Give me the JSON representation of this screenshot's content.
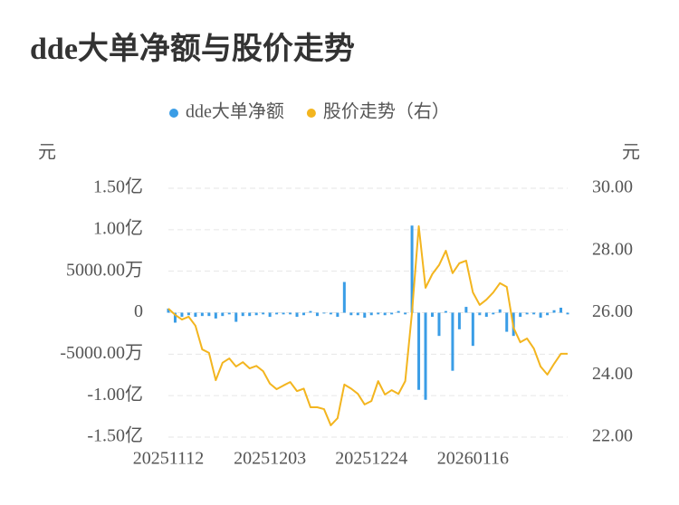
{
  "chart_data": {
    "type": "bar-line",
    "title": "dde大单净额与股价走势",
    "y_label": "元",
    "y2_label": "元",
    "categories": [
      "20251112",
      null,
      null,
      null,
      null,
      null,
      null,
      null,
      null,
      null,
      null,
      null,
      null,
      null,
      null,
      "20251203",
      null,
      null,
      null,
      null,
      null,
      null,
      null,
      null,
      null,
      null,
      null,
      null,
      null,
      null,
      "20251224",
      null,
      null,
      null,
      null,
      null,
      null,
      null,
      null,
      null,
      null,
      null,
      null,
      null,
      null,
      "20260116",
      null,
      null,
      null,
      null,
      null,
      null,
      null,
      null,
      null,
      null,
      null,
      null,
      null,
      null
    ],
    "series": [
      {
        "name": "dde大单净额",
        "type": "bar",
        "color": "#3a9de6",
        "axis": "y",
        "values": [
          5000000,
          -12000000,
          -5000000,
          -3000000,
          -5000000,
          -4000000,
          -4000000,
          -7000000,
          -4000000,
          -2000000,
          -11000000,
          -4000000,
          -4000000,
          -3000000,
          -2000000,
          -5000000,
          -2000000,
          -2000000,
          -2000000,
          -5000000,
          -3000000,
          2000000,
          -4000000,
          -1000000,
          -2000000,
          -5000000,
          37000000,
          -3000000,
          -3000000,
          -6000000,
          -3000000,
          -2000000,
          -3000000,
          -2000000,
          2000000,
          -2000000,
          105000000,
          -93000000,
          -105000000,
          -5000000,
          -28000000,
          2000000,
          -70000000,
          -20000000,
          7000000,
          -40000000,
          -3000000,
          -5000000,
          -2000000,
          4000000,
          -23000000,
          -28000000,
          -5000000,
          -2000000,
          -2000000,
          -6000000,
          -3000000,
          3000000,
          6000000,
          -2000000
        ]
      },
      {
        "name": "股价走势（右）",
        "type": "line",
        "color": "#f3b51f",
        "axis": "y2",
        "values": [
          26.13,
          25.93,
          25.78,
          25.87,
          25.58,
          24.82,
          24.71,
          23.83,
          24.39,
          24.53,
          24.27,
          24.41,
          24.21,
          24.29,
          24.12,
          23.72,
          23.54,
          23.66,
          23.77,
          23.48,
          23.56,
          22.96,
          22.96,
          22.9,
          22.38,
          22.61,
          23.69,
          23.56,
          23.39,
          23.05,
          23.16,
          23.8,
          23.37,
          23.51,
          23.39,
          23.8,
          26.01,
          28.78,
          26.8,
          27.24,
          27.53,
          27.99,
          27.27,
          27.59,
          27.67,
          26.65,
          26.25,
          26.42,
          26.65,
          26.95,
          26.83,
          25.52,
          25.05,
          25.17,
          24.85,
          24.27,
          24.01,
          24.36,
          24.68,
          24.68
        ]
      }
    ],
    "ylim": [
      -150000000,
      150000000
    ],
    "yticks": [
      {
        "value": -150000000,
        "label": "-1.50亿"
      },
      {
        "value": -100000000,
        "label": "-1.00亿"
      },
      {
        "value": -50000000,
        "label": "-5000.00万"
      },
      0,
      {
        "value": 50000000,
        "label": "5000.00万"
      },
      {
        "value": 100000000,
        "label": "1.00亿"
      },
      {
        "value": 150000000,
        "label": "1.50亿"
      }
    ],
    "y2lim": [
      22,
      30
    ],
    "y2ticks": [
      {
        "value": 22,
        "label": "22.00"
      },
      {
        "value": 24,
        "label": "24.00"
      },
      {
        "value": 26,
        "label": "26.00"
      },
      {
        "value": 28,
        "label": "28.00"
      },
      {
        "value": 30,
        "label": "30.00"
      }
    ],
    "grid": true
  }
}
